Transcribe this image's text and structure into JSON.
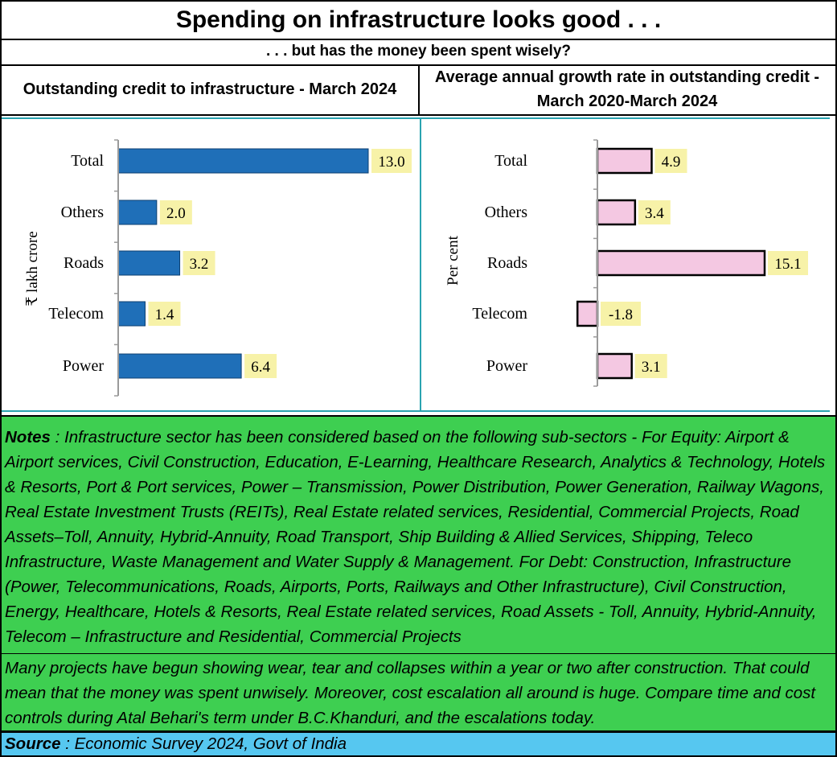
{
  "title": "Spending on infrastructure looks good . . .",
  "subtitle": ". . . but has the money been spent wisely?",
  "left_header": "Outstanding credit to infrastructure - March 2024",
  "right_header": "Average annual growth rate in outstanding credit - March 2020-March 2024",
  "colors": {
    "left_bar": "#1f6fb8",
    "right_bar": "#f4c8e2",
    "label_bg": "#f7f2a8",
    "notes_bg": "#3ecf51",
    "source_bg": "#56c7f0",
    "divider": "#2aa3b0"
  },
  "notes_label": "Notes",
  "notes_text": " : Infrastructure sector has been considered based on the following sub-sectors - For Equity: Airport & Airport services, Civil Construction, Education, E-Learning, Healthcare Research, Analytics & Technology, Hotels & Resorts, Port & Port services, Power – Transmission, Power Distribution, Power Generation, Railway Wagons, Real Estate Investment Trusts (REITs), Real Estate related services, Residential, Commercial Projects, Road Assets–Toll, Annuity, Hybrid-Annuity, Road Transport, Ship Building & Allied Services, Shipping, Teleco Infrastructure, Waste Management and Water Supply & Management. For Debt: Construction, Infrastructure (Power, Telecommunications, Roads, Airports, Ports, Railways and Other Infrastructure), Civil Construction, Energy, Healthcare, Hotels & Resorts, Real Estate related services, Road Assets - Toll, Annuity, Hybrid-Annuity, Telecom – Infrastructure and Residential, Commercial Projects",
  "comment": "Many projects have begun showing wear, tear and collapses within a year or two after construction.  That could mean that the money was spent unwisely.  Moreover, cost escalation all around is huge.  Compare time and cost controls during Atal Behari's term under B.C.Khanduri, and the escalations today.",
  "source_label": "Source",
  "source_text": " : Economic Survey 2024, Govt of India",
  "chart_data": [
    {
      "type": "bar",
      "orientation": "horizontal",
      "title": "Outstanding credit to infrastructure - March 2024",
      "ylabel": "₹ lakh crore",
      "categories": [
        "Total",
        "Others",
        "Roads",
        "Telecom",
        "Power"
      ],
      "values": [
        13.0,
        2.0,
        3.2,
        1.4,
        6.4
      ],
      "value_labels": [
        "13.0",
        "2.0",
        "3.2",
        "1.4",
        "6.4"
      ],
      "xlim": [
        0,
        15
      ],
      "grid": false,
      "data_labels": true
    },
    {
      "type": "bar",
      "orientation": "horizontal",
      "title": "Average annual growth rate in outstanding credit - March 2020-March 2024",
      "ylabel": "Per cent",
      "categories": [
        "Total",
        "Others",
        "Roads",
        "Telecom",
        "Power"
      ],
      "values": [
        4.9,
        3.4,
        15.1,
        -1.8,
        3.1
      ],
      "value_labels": [
        "4.9",
        "3.4",
        "15.1",
        "-1.8",
        "3.1"
      ],
      "xlim": [
        -2,
        17
      ],
      "grid": false,
      "data_labels": true
    }
  ]
}
